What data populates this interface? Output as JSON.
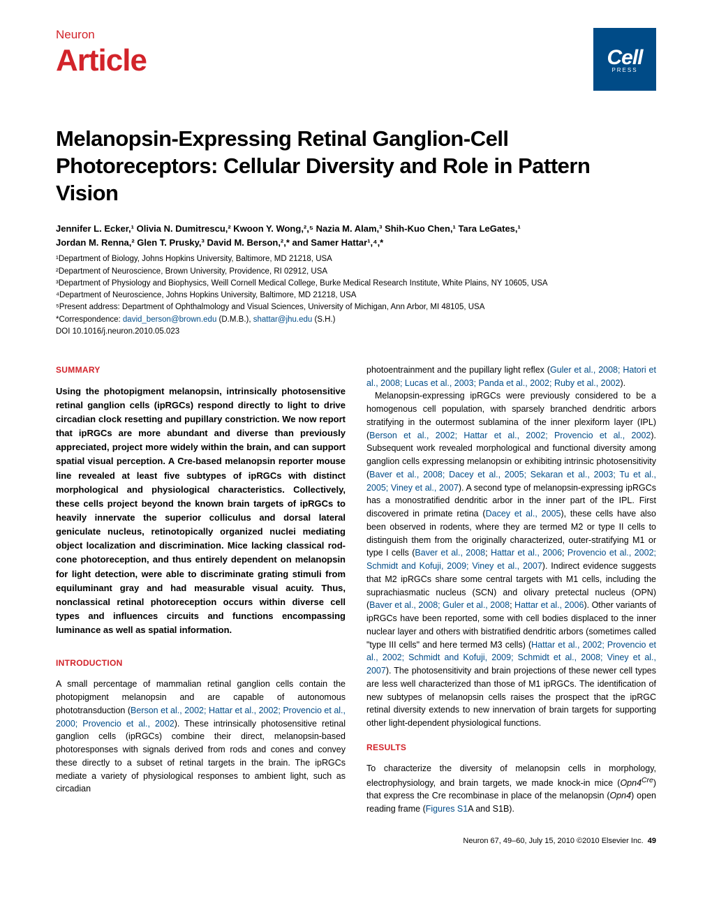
{
  "header": {
    "journal": "Neuron",
    "article_type": "Article",
    "logo_main": "Cell",
    "logo_sub": "PRESS"
  },
  "title": "Melanopsin-Expressing Retinal Ganglion-Cell Photoreceptors: Cellular Diversity and Role in Pattern Vision",
  "authors_line1": "Jennifer L. Ecker,¹ Olivia N. Dumitrescu,² Kwoon Y. Wong,²,⁵ Nazia M. Alam,³ Shih-Kuo Chen,¹ Tara LeGates,¹",
  "authors_line2": "Jordan M. Renna,² Glen T. Prusky,³ David M. Berson,²,* and Samer Hattar¹,⁴,*",
  "affiliations": {
    "a1": "¹Department of Biology, Johns Hopkins University, Baltimore, MD 21218, USA",
    "a2": "²Department of Neuroscience, Brown University, Providence, RI 02912, USA",
    "a3": "³Department of Physiology and Biophysics, Weill Cornell Medical College, Burke Medical Research Institute, White Plains, NY 10605, USA",
    "a4": "⁴Department of Neuroscience, Johns Hopkins University, Baltimore, MD 21218, USA",
    "a5": "⁵Present address: Department of Ophthalmology and Visual Sciences, University of Michigan, Ann Arbor, MI 48105, USA",
    "correspondence_label": "*Correspondence: ",
    "email1": "david_berson@brown.edu",
    "email1_after": " (D.M.B.), ",
    "email2": "shattar@jhu.edu",
    "email2_after": " (S.H.)"
  },
  "doi": "DOI 10.1016/j.neuron.2010.05.023",
  "sections": {
    "summary_header": "SUMMARY",
    "summary_text": "Using the photopigment melanopsin, intrinsically photosensitive retinal ganglion cells (ipRGCs) respond directly to light to drive circadian clock resetting and pupillary constriction. We now report that ipRGCs are more abundant and diverse than previously appreciated, project more widely within the brain, and can support spatial visual perception. A Cre-based melanopsin reporter mouse line revealed at least five subtypes of ipRGCs with distinct morphological and physiological characteristics. Collectively, these cells project beyond the known brain targets of ipRGCs to heavily innervate the superior colliculus and dorsal lateral geniculate nucleus, retinotopically organized nuclei mediating object localization and discrimination. Mice lacking classical rod-cone photoreception, and thus entirely dependent on melanopsin for light detection, were able to discriminate grating stimuli from equiluminant gray and had measurable visual acuity. Thus, nonclassical retinal photoreception occurs within diverse cell types and influences circuits and functions encompassing luminance as well as spatial information.",
    "intro_header": "INTRODUCTION",
    "results_header": "RESULTS"
  },
  "body": {
    "intro_p1_a": "A small percentage of mammalian retinal ganglion cells contain the photopigment melanopsin and are capable of autonomous phototransduction (",
    "intro_p1_cite1": "Berson et al., 2002; Hattar et al., 2002; Provencio et al., 2000; Provencio et al., 2002",
    "intro_p1_b": "). These intrinsically photosensitive retinal ganglion cells (ipRGCs) combine their direct, melanopsin-based photoresponses with signals derived from rods and cones and convey these directly to a subset of retinal targets in the brain. The ipRGCs mediate a variety of physiological responses to ambient light, such as circadian",
    "right_p1_a": "photoentrainment and the pupillary light reflex (",
    "right_p1_cite": "Guler et al., 2008; Hatori et al., 2008; Lucas et al., 2003; Panda et al., 2002; Ruby et al., 2002",
    "right_p1_b": ").",
    "right_p2_a": "Melanopsin-expressing ipRGCs were previously considered to be a homogenous cell population, with sparsely branched dendritic arbors stratifying in the outermost sublamina of the inner plexiform layer (IPL) (",
    "right_p2_cite1": "Berson et al., 2002; Hattar et al., 2002; Provencio et al., 2002",
    "right_p2_b": "). Subsequent work revealed morphological and functional diversity among ganglion cells expressing melanopsin or exhibiting intrinsic photosensitivity (",
    "right_p2_cite2": "Baver et al., 2008; Dacey et al., 2005; Sekaran et al., 2003; Tu et al., 2005; Viney et al., 2007",
    "right_p2_c": "). A second type of melanopsin-expressing ipRGCs has a monostratified dendritic arbor in the inner part of the IPL. First discovered in primate retina (",
    "right_p2_cite3": "Dacey et al., 2005",
    "right_p2_d": "), these cells have also been observed in rodents, where they are termed M2 or type II cells to distinguish them from the originally characterized, outer-stratifying M1 or type I cells (",
    "right_p2_cite4": "Baver et al., 2008",
    "right_p2_e": "; ",
    "right_p2_cite5": "Hattar et al., 2006",
    "right_p2_f": "; ",
    "right_p2_cite6": "Provencio et al., 2002; Schmidt and Kofuji, 2009; Viney et al., 2007",
    "right_p2_g": "). Indirect evidence suggests that M2 ipRGCs share some central targets with M1 cells, including the suprachiasmatic nucleus (SCN) and olivary pretectal nucleus (OPN) (",
    "right_p2_cite7": "Baver et al., 2008; Guler et al., 2008",
    "right_p2_h": "; ",
    "right_p2_cite8": "Hattar et al., 2006",
    "right_p2_i": "). Other variants of ipRGCs have been reported, some with cell bodies displaced to the inner nuclear layer and others with bistratified dendritic arbors (sometimes called \"type III cells\" and here termed M3 cells) (",
    "right_p2_cite9": "Hattar et al., 2002; Provencio et al., 2002; Schmidt and Kofuji, 2009; Schmidt et al., 2008; Viney et al., 2007",
    "right_p2_j": "). The photosensitivity and brain projections of these newer cell types are less well characterized than those of M1 ipRGCs. The identification of new subtypes of melanopsin cells raises the prospect that the ipRGC retinal diversity extends to new innervation of brain targets for supporting other light-dependent physiological functions.",
    "results_p1_a": "To characterize the diversity of melanopsin cells in morphology, electrophysiology, and brain targets, we made knock-in mice (",
    "results_gene1": "Opn4",
    "results_gene1_sup": "Cre",
    "results_p1_b": ") that express the Cre recombinase in place of the melanopsin (",
    "results_gene2": "Opn4",
    "results_p1_c": ") open reading frame (",
    "results_cite1": "Figures S1",
    "results_p1_d": "A and S1B)."
  },
  "footer": {
    "citation": "Neuron 67, 49–60, July 15, 2010 ©2010 Elsevier Inc.",
    "page": "49"
  },
  "colors": {
    "brand_red": "#d2232a",
    "link_blue": "#004b87",
    "logo_bg": "#004b87"
  }
}
